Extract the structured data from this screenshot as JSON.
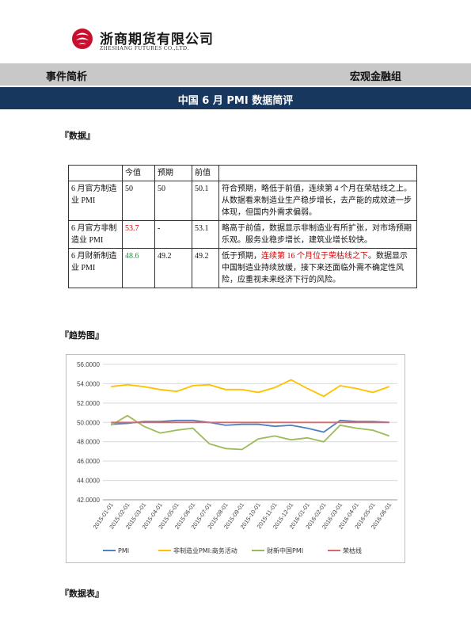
{
  "header": {
    "company_cn": "浙商期货有限公司",
    "company_en": "ZHESHANG FUTURES CO.,LTD.",
    "section_left": "事件简析",
    "section_right": "宏观金融组",
    "report_title": "中国 6 月 PMI 数据简评"
  },
  "sections": {
    "data": "『数据』",
    "trend": "『趋势图』",
    "table": "『数据表』"
  },
  "table": {
    "headers": [
      "",
      "今值",
      "预期",
      "前值",
      ""
    ],
    "rows": [
      {
        "name": "6 月官方制造业 PMI",
        "current": "50",
        "expected": "50",
        "previous": "50.1",
        "comment_pre": "符合预期，略低于前值，连续第 4 个月在荣枯线之上。从数据看来制造业生产稳步增长，去产能的成效进一步体现，但国内外需求偏弱。",
        "comment_red": "",
        "comment_post": ""
      },
      {
        "name": "6 月官方非制造业 PMI",
        "current": "53.7",
        "expected": "-",
        "previous": "53.1",
        "comment_pre": "略高于前值，数据显示非制造业有所扩张，对市场预期乐观。服务业稳步增长，建筑业增长较快。",
        "comment_red": "",
        "comment_post": ""
      },
      {
        "name": "6 月财新制造业 PMI",
        "current": "48.6",
        "expected": "49.2",
        "previous": "49.2",
        "comment_pre": "低于预期，",
        "comment_red": "连续第 16 个月位于荣枯线之下",
        "comment_post": "。数据显示中国制造业持续放缓，接下来还面临外需不确定性风险，应重视未来经济下行的风险。"
      }
    ]
  },
  "colors": {
    "gray_bar": "#c8c8c8",
    "blue_bar": "#17375e",
    "current_red": "#d40000",
    "current_green": "#1c9a3c",
    "pmi": "#4f81bd",
    "non_mfg": "#ffc000",
    "caixin": "#9bbb59",
    "threshold": "#e06666"
  },
  "chart_data": {
    "type": "line",
    "x": [
      "2015-01-01",
      "2015-02-01",
      "2015-03-01",
      "2015-04-01",
      "2015-05-01",
      "2015-06-01",
      "2015-07-01",
      "2015-08-01",
      "2015-09-01",
      "2015-10-01",
      "2015-11-01",
      "2015-12-01",
      "2016-01-01",
      "2016-02-01",
      "2016-03-01",
      "2016-04-01",
      "2016-05-01",
      "2016-06-01"
    ],
    "ylim": [
      42,
      56
    ],
    "yticks": [
      "42.0000",
      "44.0000",
      "46.0000",
      "48.0000",
      "50.0000",
      "52.0000",
      "54.0000",
      "56.0000"
    ],
    "grid": true,
    "legend": "bottom",
    "series": [
      {
        "name": "PMI",
        "values": [
          49.8,
          49.9,
          50.1,
          50.1,
          50.2,
          50.2,
          50.0,
          49.7,
          49.8,
          49.8,
          49.6,
          49.7,
          49.4,
          49.0,
          50.2,
          50.1,
          50.1,
          50.0
        ]
      },
      {
        "name": "非制造业PMI:商务活动",
        "values": [
          53.7,
          53.9,
          53.7,
          53.4,
          53.2,
          53.8,
          53.9,
          53.4,
          53.4,
          53.1,
          53.6,
          54.4,
          53.5,
          52.7,
          53.8,
          53.5,
          53.1,
          53.7
        ]
      },
      {
        "name": "财新中国PMI",
        "values": [
          49.7,
          50.7,
          49.6,
          48.9,
          49.2,
          49.4,
          47.8,
          47.3,
          47.2,
          48.3,
          48.6,
          48.2,
          48.4,
          48.0,
          49.7,
          49.4,
          49.2,
          48.6
        ]
      },
      {
        "name": "荣枯线",
        "values": [
          50,
          50,
          50,
          50,
          50,
          50,
          50,
          50,
          50,
          50,
          50,
          50,
          50,
          50,
          50,
          50,
          50,
          50
        ]
      }
    ]
  }
}
